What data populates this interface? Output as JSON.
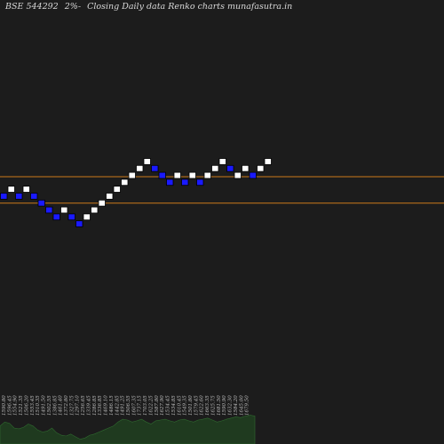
{
  "header": {
    "symbol": "BSE 544292",
    "box_size": "2%-",
    "description": "Closing Daily data Renko charts munafasutra.in"
  },
  "colors": {
    "background": "#1c1c1c",
    "up_brick": "#ffffff",
    "down_brick": "#1a1aff",
    "reference_line": "#cc7a1a",
    "volume_fill": "#1f3a1f",
    "volume_stroke": "#2f6a2f",
    "label_text": "#bdbdbd"
  },
  "chart_data": {
    "type": "renko",
    "bricks": [
      {
        "dir": "down",
        "level": 7
      },
      {
        "dir": "up",
        "level": 8
      },
      {
        "dir": "down",
        "level": 7
      },
      {
        "dir": "up",
        "level": 8
      },
      {
        "dir": "down",
        "level": 7
      },
      {
        "dir": "down",
        "level": 6
      },
      {
        "dir": "down",
        "level": 5
      },
      {
        "dir": "down",
        "level": 4
      },
      {
        "dir": "up",
        "level": 5
      },
      {
        "dir": "down",
        "level": 4
      },
      {
        "dir": "down",
        "level": 3
      },
      {
        "dir": "up",
        "level": 4
      },
      {
        "dir": "up",
        "level": 5
      },
      {
        "dir": "up",
        "level": 6
      },
      {
        "dir": "up",
        "level": 7
      },
      {
        "dir": "up",
        "level": 8
      },
      {
        "dir": "up",
        "level": 9
      },
      {
        "dir": "up",
        "level": 10
      },
      {
        "dir": "up",
        "level": 11
      },
      {
        "dir": "up",
        "level": 12
      },
      {
        "dir": "down",
        "level": 11
      },
      {
        "dir": "down",
        "level": 10
      },
      {
        "dir": "down",
        "level": 9
      },
      {
        "dir": "up",
        "level": 10
      },
      {
        "dir": "down",
        "level": 9
      },
      {
        "dir": "up",
        "level": 10
      },
      {
        "dir": "down",
        "level": 9
      },
      {
        "dir": "up",
        "level": 10
      },
      {
        "dir": "up",
        "level": 11
      },
      {
        "dir": "up",
        "level": 12
      },
      {
        "dir": "down",
        "level": 11
      },
      {
        "dir": "up",
        "level": 10
      },
      {
        "dir": "up",
        "level": 11
      },
      {
        "dir": "down",
        "level": 10
      },
      {
        "dir": "up",
        "level": 11
      },
      {
        "dir": "up",
        "level": 12
      }
    ],
    "reference_levels": [
      10.3,
      6.5
    ],
    "price_labels": [
      "1590.80",
      "1596.45",
      "1554.90",
      "1521.35",
      "1506.20",
      "1553.45",
      "1510.35",
      "1491.50",
      "1502.55",
      "1386.85",
      "1461.40",
      "1372.80",
      "1327.75",
      "1297.10",
      "1256.65",
      "1339.45",
      "1286.85",
      "1336.85",
      "1469.10",
      "1486.15",
      "1442.85",
      "1491.25",
      "1506.55",
      "1607.35",
      "1737.15",
      "1703.05",
      "1622.25",
      "1587.80",
      "1627.90",
      "1534.45",
      "1534.85",
      "1610.45",
      "1549.35",
      "1501.80",
      "1579.45",
      "1622.60",
      "1663.35",
      "1625.75",
      "1681.50",
      "1590.90",
      "1632.30",
      "1584.20",
      "1645.00",
      "1679.50"
    ],
    "volumes": [
      0.45,
      0.55,
      0.52,
      0.4,
      0.38,
      0.42,
      0.5,
      0.45,
      0.35,
      0.3,
      0.32,
      0.4,
      0.28,
      0.22,
      0.2,
      0.25,
      0.18,
      0.12,
      0.15,
      0.22,
      0.25,
      0.3,
      0.35,
      0.4,
      0.45,
      0.55,
      0.62,
      0.6,
      0.55,
      0.58,
      0.62,
      0.55,
      0.5,
      0.58,
      0.6,
      0.62,
      0.58,
      0.55,
      0.6,
      0.62,
      0.58,
      0.55,
      0.6,
      0.62,
      0.65,
      0.6,
      0.55,
      0.58,
      0.62,
      0.65,
      0.68,
      0.66,
      0.7,
      0.72,
      0.7
    ]
  }
}
